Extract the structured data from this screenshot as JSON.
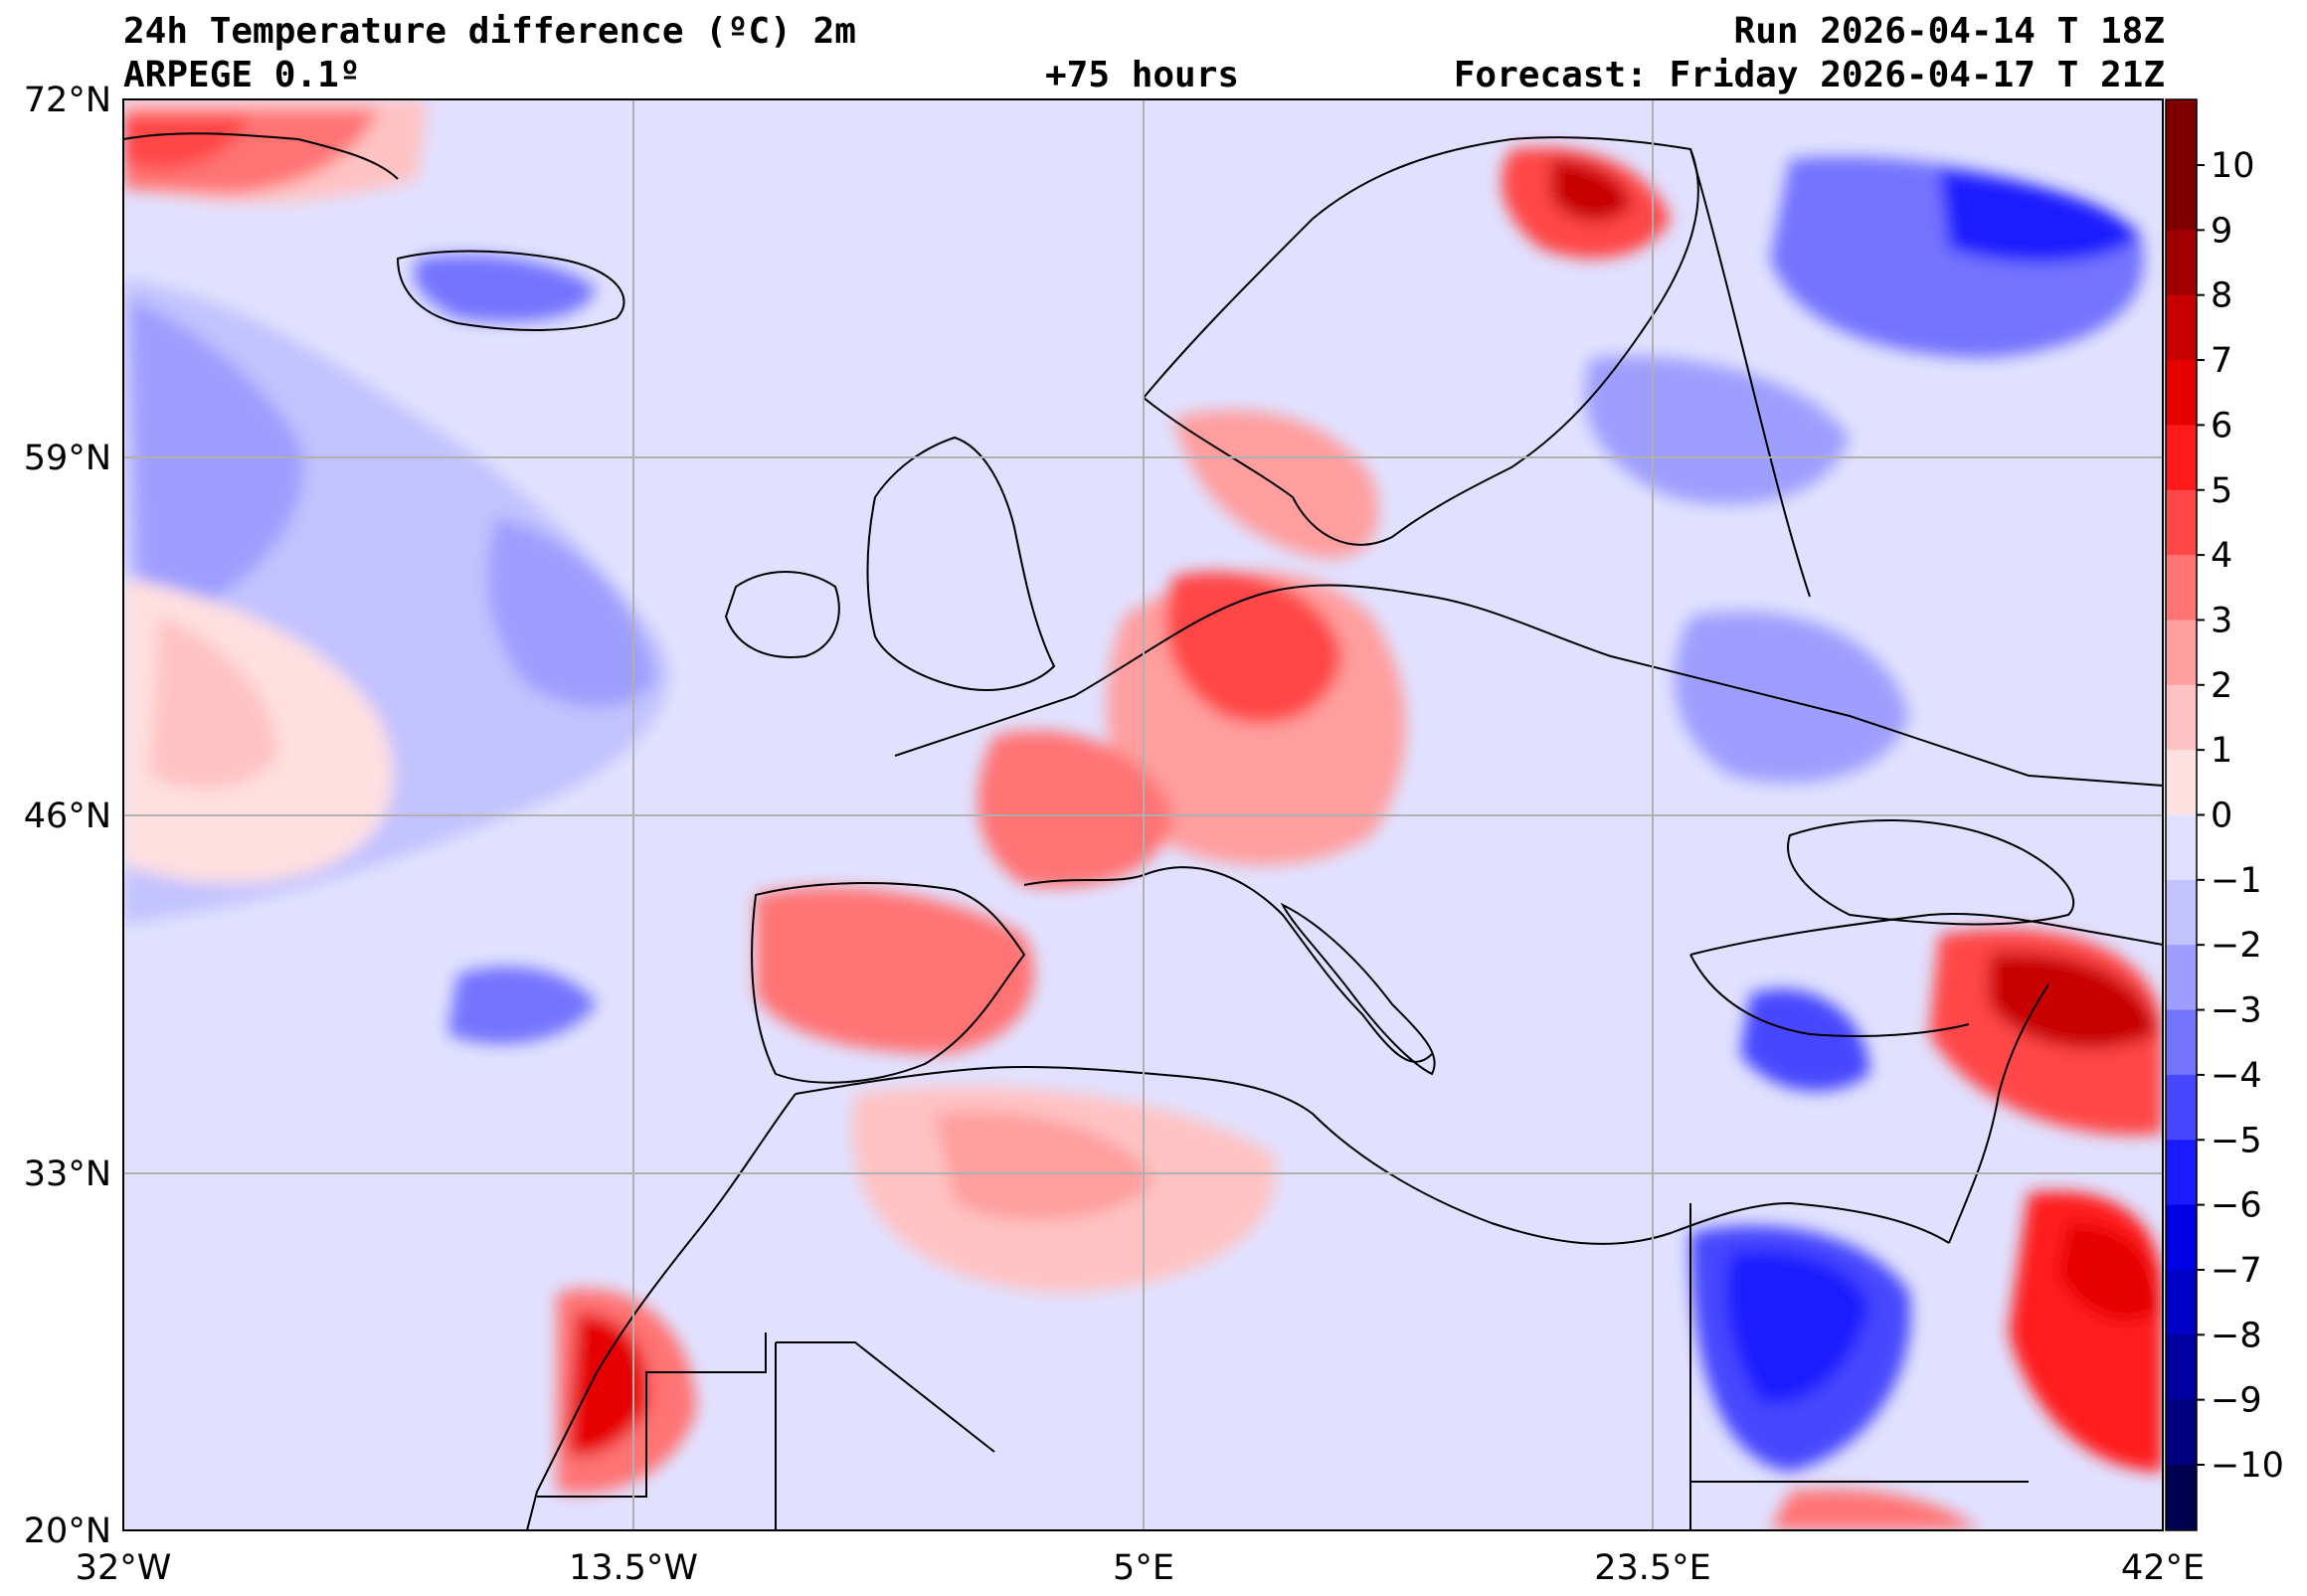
{
  "header": {
    "title": "24h Temperature difference (ºC) 2m",
    "model": "ARPEGE 0.1º",
    "lead_time": "+75 hours",
    "run": "Run 2026-04-14 T 18Z",
    "forecast": "Forecast: Friday 2026-04-17 T 21Z"
  },
  "map": {
    "projection": "equirectangular",
    "lon_range": [
      -32,
      42
    ],
    "lat_range": [
      20,
      72
    ],
    "lat_ticks": [
      "72°N",
      "59°N",
      "46°N",
      "33°N",
      "20°N"
    ],
    "lon_ticks": [
      "32°W",
      "13.5°W",
      "5°E",
      "23.5°E",
      "42°E"
    ],
    "grid": true
  },
  "colorbar": {
    "labels": [
      "10",
      "9",
      "8",
      "7",
      "6",
      "5",
      "4",
      "3",
      "2",
      "1",
      "0",
      "−1",
      "−2",
      "−3",
      "−4",
      "−5",
      "−6",
      "−7",
      "−8",
      "−9",
      "−10"
    ],
    "colors": [
      "#800000",
      "#a00000",
      "#c80000",
      "#e60000",
      "#ff1a1a",
      "#ff4747",
      "#ff7373",
      "#ff9e9e",
      "#ffc2c2",
      "#ffe0e0",
      "#e1e1ff",
      "#c2c2ff",
      "#9e9eff",
      "#7373ff",
      "#4747ff",
      "#1a1aff",
      "#0000e6",
      "#0000c8",
      "#0000a0",
      "#000080"
    ]
  },
  "colors": {
    "warm": "#ff4747",
    "cool": "#4747ff",
    "neutral_warm": "#ffe0e0",
    "neutral_cool": "#e1e1ff"
  }
}
